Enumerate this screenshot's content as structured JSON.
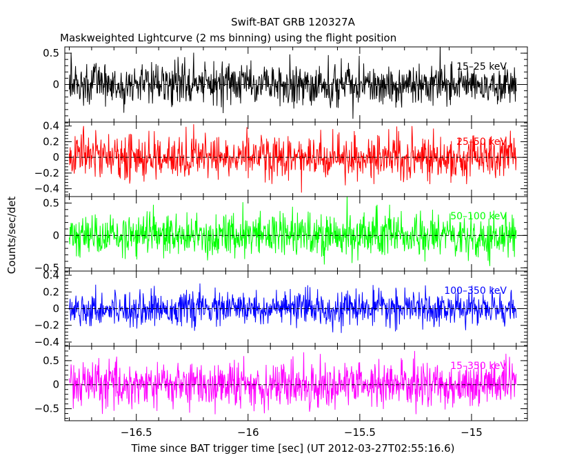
{
  "chart_data": {
    "type": "line",
    "title": "Swift-BAT GRB 120327A",
    "subtitle": "Maskweighted Lightcurve (2 ms binning) using the flight position",
    "xlabel": "Time since BAT trigger time [sec] (UT 2012-03-27T02:55:16.6)",
    "ylabel": "Counts/sec/det",
    "xlim": [
      -16.82,
      -14.75
    ],
    "x_ticks": [
      "−16.5",
      "−16",
      "−15.5",
      "−15"
    ],
    "x_tick_values": [
      -16.5,
      -16.0,
      -15.5,
      -15.0
    ],
    "x_range_data": [
      -16.8,
      -14.8
    ],
    "grid": false,
    "panels": [
      {
        "name": "15–25 keV",
        "color": "#000000",
        "ylim": [
          -0.6,
          0.6
        ],
        "y_ticks": [
          "0.5",
          "0"
        ],
        "y_tick_values": [
          0.5,
          0
        ],
        "noise_sigma": 0.17,
        "zero_line": true
      },
      {
        "name": "25–50 keV",
        "color": "#ff0000",
        "ylim": [
          -0.5,
          0.45
        ],
        "y_ticks": [
          "0.4",
          "0.2",
          "0",
          "−0.2",
          "−0.4"
        ],
        "y_tick_values": [
          0.4,
          0.2,
          0,
          -0.2,
          -0.4
        ],
        "noise_sigma": 0.14,
        "zero_line": true
      },
      {
        "name": "50–100 keV",
        "color": "#00ff00",
        "ylim": [
          -0.55,
          0.6
        ],
        "y_ticks": [
          "0.5",
          "0",
          "−0.5"
        ],
        "y_tick_values": [
          0.5,
          0,
          -0.5
        ],
        "noise_sigma": 0.17,
        "zero_line": true
      },
      {
        "name": "100–350 keV",
        "color": "#0000ff",
        "ylim": [
          -0.45,
          0.45
        ],
        "y_ticks": [
          "0.4",
          "0.2",
          "0",
          "−0.2",
          "−0.4"
        ],
        "y_tick_values": [
          0.4,
          0.2,
          0,
          -0.2,
          -0.4
        ],
        "noise_sigma": 0.1,
        "zero_line": true
      },
      {
        "name": "15–350 keV",
        "color": "#ff00ff",
        "ylim": [
          -0.75,
          0.8
        ],
        "y_ticks": [
          "0.5",
          "0",
          "−0.5"
        ],
        "y_tick_values": [
          0.5,
          0,
          -0.5
        ],
        "noise_sigma": 0.24,
        "zero_line": true
      }
    ]
  }
}
